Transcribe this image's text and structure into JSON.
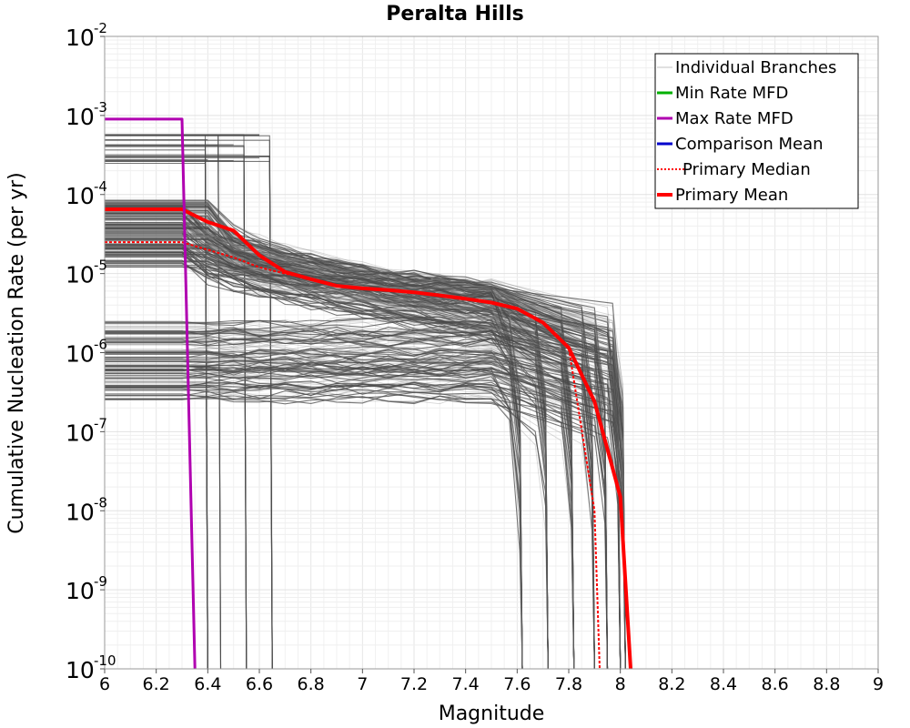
{
  "chart_data": {
    "type": "line",
    "title": "Peralta Hills",
    "xlabel": "Magnitude",
    "ylabel": "Cumulative Nucleation Rate (per yr)",
    "xlim": [
      6,
      9
    ],
    "ylim": [
      1e-10,
      0.01
    ],
    "y_scale": "log",
    "x_ticks": [
      6,
      6.2,
      6.4,
      6.6,
      6.8,
      7,
      7.2,
      7.4,
      7.6,
      7.8,
      8,
      8.2,
      8.4,
      8.6,
      8.8,
      9
    ],
    "x_tick_labels": [
      "6",
      "6.2",
      "6.4",
      "6.6",
      "6.8",
      "7",
      "7.2",
      "7.4",
      "7.6",
      "7.8",
      "8",
      "8.2",
      "8.4",
      "8.6",
      "8.8",
      "9"
    ],
    "y_ticks": [
      {
        "value": 1e-10,
        "base": "10",
        "exp": "-10"
      },
      {
        "value": 1e-09,
        "base": "10",
        "exp": "-9"
      },
      {
        "value": 1e-08,
        "base": "10",
        "exp": "-8"
      },
      {
        "value": 1e-07,
        "base": "10",
        "exp": "-7"
      },
      {
        "value": 1e-06,
        "base": "10",
        "exp": "-6"
      },
      {
        "value": 1e-05,
        "base": "10",
        "exp": "-5"
      },
      {
        "value": 0.0001,
        "base": "10",
        "exp": "-4"
      },
      {
        "value": 0.001,
        "base": "10",
        "exp": "-3"
      },
      {
        "value": 0.01,
        "base": "10",
        "exp": "-2"
      }
    ],
    "grid": true,
    "legend_position": "top-right",
    "legend": [
      {
        "label": "Individual Branches",
        "color": "#c0c0c0",
        "style": "thin"
      },
      {
        "label": "Min Rate MFD",
        "color": "#00b000",
        "style": "solid"
      },
      {
        "label": "Max Rate MFD",
        "color": "#b000b0",
        "style": "solid"
      },
      {
        "label": "Comparison Mean",
        "color": "#0000cc",
        "style": "solid"
      },
      {
        "label": " Primary Median",
        "color": "#ff0000",
        "style": "dotted"
      },
      {
        "label": "Primary Mean",
        "color": "#ff0000",
        "style": "thick"
      }
    ],
    "series": [
      {
        "name": "Primary Mean",
        "color": "#ff0000",
        "x": [
          6.0,
          6.3,
          6.4,
          6.5,
          6.6,
          6.7,
          6.8,
          6.9,
          7.0,
          7.1,
          7.2,
          7.3,
          7.4,
          7.5,
          7.6,
          7.7,
          7.8,
          7.9,
          8.0,
          8.04
        ],
        "y": [
          6.5e-05,
          6.5e-05,
          4.5e-05,
          3.5e-05,
          1.7e-05,
          1.05e-05,
          8.5e-06,
          7e-06,
          6.5e-06,
          6.2e-06,
          5.8e-06,
          5.3e-06,
          4.8e-06,
          4.3e-06,
          3.6e-06,
          2.4e-06,
          1.15e-06,
          2.4e-07,
          1.5e-08,
          1e-10
        ]
      },
      {
        "name": "Primary Median",
        "color": "#ff0000",
        "x": [
          6.0,
          6.3,
          6.4,
          6.5,
          6.6,
          6.7,
          6.8,
          6.9,
          7.0,
          7.2,
          7.4,
          7.5,
          7.6,
          7.7,
          7.8,
          7.9,
          7.92
        ],
        "y": [
          2.5e-05,
          2.5e-05,
          2e-05,
          1.6e-05,
          1.2e-05,
          1e-05,
          8.5e-06,
          7e-06,
          6.5e-06,
          5.8e-06,
          4.8e-06,
          4.3e-06,
          3.6e-06,
          2.4e-06,
          1.15e-06,
          1e-08,
          1e-10
        ]
      },
      {
        "name": "Max Rate MFD",
        "color": "#b000b0",
        "x": [
          6.0,
          6.3,
          6.35
        ],
        "y": [
          0.0009,
          0.0009,
          1e-10
        ]
      }
    ],
    "branch_groups": [
      {
        "count": 22,
        "y_min": 0.00024,
        "y_max": 0.0006,
        "m_plateau": [
          6.3,
          6.4,
          6.5,
          6.6
        ],
        "m_drop": [
          6.4,
          6.45,
          6.55,
          6.65
        ]
      },
      {
        "count": 120,
        "y_min": 3.5e-05,
        "y_max": 8.5e-05,
        "m_plateau": [
          6.3,
          6.4
        ],
        "m_drop": [
          7.62,
          7.72,
          7.82,
          7.9,
          7.95,
          8.0,
          8.02
        ]
      },
      {
        "count": 110,
        "y_min": 1.2e-05,
        "y_max": 3.5e-05,
        "m_plateau": [
          6.3,
          6.4
        ],
        "m_drop": [
          7.62,
          7.72,
          7.82,
          7.9,
          7.95,
          8.0,
          8.02
        ]
      },
      {
        "count": 120,
        "y_min": 2.5e-07,
        "y_max": 2.5e-06,
        "m_plateau": [
          6.3,
          6.4
        ],
        "m_drop": [
          7.62,
          7.72,
          7.82,
          7.9,
          7.95,
          8.0,
          8.02
        ]
      }
    ]
  }
}
